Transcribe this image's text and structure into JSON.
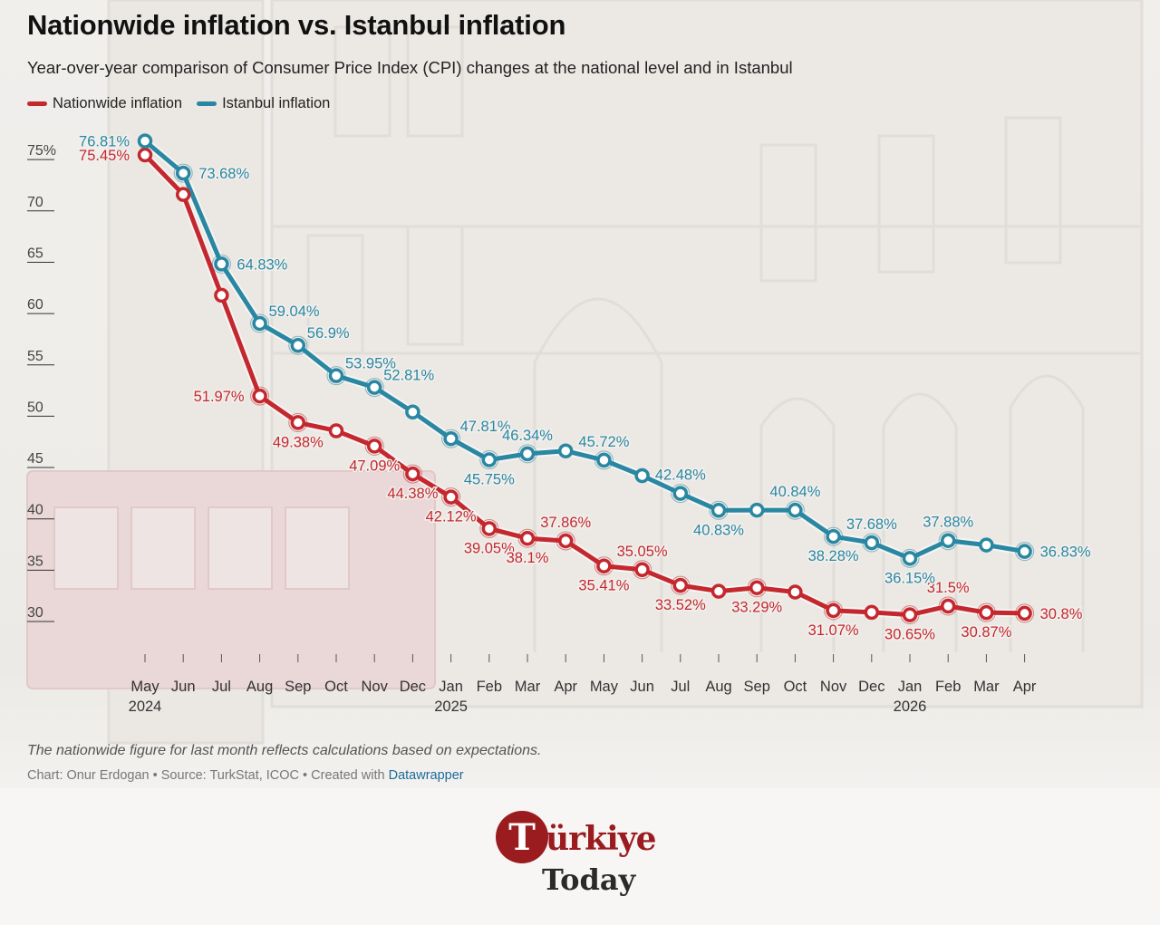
{
  "header": {
    "title": "Nationwide inflation vs. Istanbul inflation",
    "subtitle": "Year-over-year comparison of Consumer Price Index (CPI) changes at the national level and in Istanbul"
  },
  "legend": [
    {
      "label": "Nationwide inflation",
      "color": "#c4282e"
    },
    {
      "label": "Istanbul inflation",
      "color": "#2a87a2"
    }
  ],
  "footer": {
    "note": "The nationwide figure for last month reflects calculations based on expectations.",
    "credits_prefix": "Chart: Onur Erdogan • Source: TurkStat, ICOC • Created with ",
    "credits_link": "Datawrapper"
  },
  "logo": {
    "line1": "Türkiye",
    "line2": "Today"
  },
  "chart_data": {
    "type": "line",
    "title": "Nationwide inflation vs. Istanbul inflation",
    "xlabel": "",
    "ylabel": "",
    "ylim": [
      26,
      77.5
    ],
    "yticks": [
      30,
      35,
      40,
      45,
      50,
      55,
      60,
      65,
      70,
      75
    ],
    "ytick_labels": [
      "30",
      "35",
      "40",
      "45",
      "50",
      "55",
      "60",
      "65",
      "70",
      "75%"
    ],
    "grid": false,
    "legend_position": "top-left",
    "x": [
      "May 2024",
      "Jun 2024",
      "Jul 2024",
      "Aug 2024",
      "Sep 2024",
      "Oct 2024",
      "Nov 2024",
      "Dec 2024",
      "Jan 2025",
      "Feb 2025",
      "Mar 2025",
      "Apr 2025",
      "May 2025",
      "Jun 2025",
      "Jul 2025",
      "Aug 2025",
      "Sep 2025",
      "Oct 2025",
      "Nov 2025",
      "Dec 2025",
      "Jan 2026",
      "Feb 2026",
      "Mar 2026",
      "Apr 2026"
    ],
    "xtick_month": [
      "May",
      "Jun",
      "Jul",
      "Aug",
      "Sep",
      "Oct",
      "Nov",
      "Dec",
      "Jan",
      "Feb",
      "Mar",
      "Apr",
      "May",
      "Jun",
      "Jul",
      "Aug",
      "Sep",
      "Oct",
      "Nov",
      "Dec",
      "Jan",
      "Feb",
      "Mar",
      "Apr"
    ],
    "xtick_year": [
      "2024",
      "",
      "",
      "",
      "",
      "",
      "",
      "",
      "2025",
      "",
      "",
      "",
      "",
      "",
      "",
      "",
      "",
      "",
      "",
      "",
      "2026",
      "",
      "",
      ""
    ],
    "series": [
      {
        "name": "Nationwide inflation",
        "color": "#c4282e",
        "values": [
          75.45,
          71.6,
          61.78,
          51.97,
          49.38,
          48.58,
          47.09,
          44.38,
          42.12,
          39.05,
          38.1,
          37.86,
          35.41,
          35.05,
          33.52,
          32.95,
          33.29,
          32.87,
          31.07,
          30.89,
          30.65,
          31.5,
          30.87,
          30.8
        ],
        "labels": [
          "75.45%",
          "",
          "",
          "51.97%",
          "49.38%",
          "",
          "47.09%",
          "44.38%",
          "42.12%",
          "39.05%",
          "38.1%",
          "37.86%",
          "35.41%",
          "35.05%",
          "33.52%",
          "",
          "33.29%",
          "",
          "31.07%",
          "",
          "30.65%",
          "31.5%",
          "30.87%",
          "30.8%"
        ],
        "label_side": [
          "left",
          "",
          "",
          "left",
          "below",
          "",
          "below",
          "below",
          "below",
          "below",
          "below",
          "above",
          "below",
          "above",
          "below",
          "",
          "below",
          "",
          "below",
          "",
          "below",
          "above",
          "below",
          "right"
        ]
      },
      {
        "name": "Istanbul inflation",
        "color": "#2a87a2",
        "values": [
          76.81,
          73.68,
          64.83,
          59.04,
          56.9,
          53.95,
          52.81,
          50.41,
          47.81,
          45.75,
          46.34,
          46.62,
          45.72,
          44.21,
          42.48,
          40.83,
          40.85,
          40.84,
          38.28,
          37.68,
          36.15,
          37.88,
          37.45,
          36.83
        ],
        "labels": [
          "76.81%",
          "73.68%",
          "64.83%",
          "59.04%",
          "56.9%",
          "53.95%",
          "52.81%",
          "",
          "47.81%",
          "45.75%",
          "46.34%",
          "",
          "45.72%",
          "",
          "42.48%",
          "40.83%",
          "",
          "40.84%",
          "38.28%",
          "37.68%",
          "36.15%",
          "37.88%",
          "",
          "36.83%"
        ],
        "label_side": [
          "left",
          "right",
          "right",
          "above-right",
          "above-right",
          "above-right",
          "above-right",
          "",
          "above-right",
          "below",
          "above",
          "",
          "above",
          "",
          "above",
          "below",
          "",
          "above",
          "below",
          "above",
          "below",
          "above",
          "",
          "right"
        ]
      }
    ]
  }
}
